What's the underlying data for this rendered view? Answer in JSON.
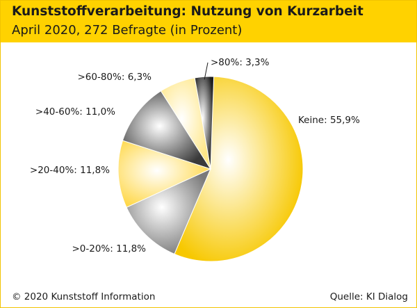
{
  "header": {
    "title": "Kunststoffverarbeitung: Nutzung von Kurzarbeit",
    "subtitle": "April 2020, 272 Befragte (in Prozent)"
  },
  "footer": {
    "copyright": "© 2020 Kunststoff Information",
    "source": "Quelle: KI Dialog"
  },
  "chart_data": {
    "type": "pie",
    "title": "Kunststoffverarbeitung: Nutzung von Kurzarbeit",
    "subtitle": "April 2020, 272 Befragte (in Prozent)",
    "categories": [
      "Keine",
      "0-20%",
      "20-40%",
      "40-60%",
      "60-80%",
      "80%"
    ],
    "values": [
      55.9,
      11.8,
      11.8,
      11.0,
      6.3,
      3.3
    ],
    "labels": [
      "Keine: 55,9%",
      ">0-20%: 11,8%",
      ">20-40%: 11,8%",
      ">40-60%: 11,0%",
      ">60-80%: 6,3%",
      ">80%: 3,3%"
    ],
    "colors": [
      "#f7c800",
      "#7a7a7a",
      "#ffd84a",
      "#3a3a3a",
      "#ffe788",
      "#1e1e1e"
    ],
    "direction": "clockwise-from-top"
  }
}
